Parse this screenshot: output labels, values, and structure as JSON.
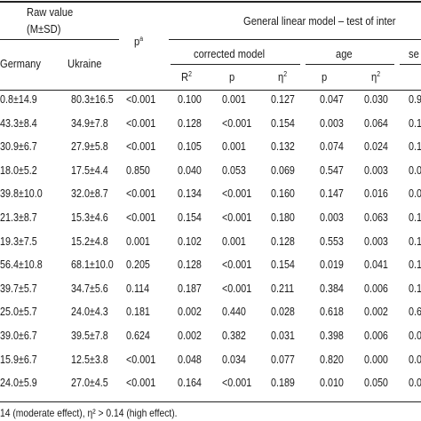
{
  "header": {
    "raw_value_line1": "Raw value",
    "raw_value_line2": "(M±SD)",
    "glm_title": "General linear model – test of inter",
    "p_label": "p",
    "p_sup": "a",
    "col_germany": "Germany",
    "col_ukraine": "Ukraine",
    "group_corrected": "corrected model",
    "group_age": "age",
    "group_sex_partial": "se",
    "r2_label": "R",
    "r2_sup": "2",
    "p_col_label": "p",
    "eta_label": "η",
    "eta_sup": "2"
  },
  "rows": [
    {
      "germany": "0.8±14.9",
      "ukraine": "80.3±16.5",
      "p": "<0.001",
      "r2": "0.100",
      "cm_p": "0.001",
      "cm_eta": "0.127",
      "age_p": "0.047",
      "age_eta": "0.030",
      "sex": "0.9"
    },
    {
      "germany": "43.3±8.4",
      "ukraine": "34.9±7.8",
      "p": "<0.001",
      "r2": "0.128",
      "cm_p": "<0.001",
      "cm_eta": "0.154",
      "age_p": "0.003",
      "age_eta": "0.064",
      "sex": "0.1"
    },
    {
      "germany": "30.9±6.7",
      "ukraine": "27.9±5.8",
      "p": "<0.001",
      "r2": "0.105",
      "cm_p": "0.001",
      "cm_eta": "0.132",
      "age_p": "0.074",
      "age_eta": "0.024",
      "sex": "0.1"
    },
    {
      "germany": "18.0±5.2",
      "ukraine": "17.5±4.4",
      "p": "0.850",
      "r2": "0.040",
      "cm_p": "0.053",
      "cm_eta": "0.069",
      "age_p": "0.547",
      "age_eta": "0.003",
      "sex": "0.0"
    },
    {
      "germany": "39.8±10.0",
      "ukraine": "32.0±8.7",
      "p": "<0.001",
      "r2": "0.134",
      "cm_p": "<0.001",
      "cm_eta": "0.160",
      "age_p": "0.147",
      "age_eta": "0.016",
      "sex": "0.0"
    },
    {
      "germany": "21.3±8.7",
      "ukraine": "15.3±4.6",
      "p": "<0.001",
      "r2": "0.154",
      "cm_p": "<0.001",
      "cm_eta": "0.180",
      "age_p": "0.003",
      "age_eta": "0.063",
      "sex": "0.1"
    },
    {
      "germany": "19.3±7.5",
      "ukraine": "15.2±4.8",
      "p": "0.001",
      "r2": "0.102",
      "cm_p": "0.001",
      "cm_eta": "0.128",
      "age_p": "0.553",
      "age_eta": "0.003",
      "sex": "0.1"
    },
    {
      "germany": "56.4±10.8",
      "ukraine": "68.1±10.0",
      "p": "0.205",
      "r2": "0.128",
      "cm_p": "<0.001",
      "cm_eta": "0.154",
      "age_p": "0.019",
      "age_eta": "0.041",
      "sex": "0.1"
    },
    {
      "germany": "39.7±5.7",
      "ukraine": "34.7±5.6",
      "p": "0.114",
      "r2": "0.187",
      "cm_p": "<0.001",
      "cm_eta": "0.211",
      "age_p": "0.384",
      "age_eta": "0.006",
      "sex": "0.1"
    },
    {
      "germany": "25.0±5.7",
      "ukraine": "24.0±4.3",
      "p": "0.181",
      "r2": "0.002",
      "cm_p": "0.440",
      "cm_eta": "0.028",
      "age_p": "0.618",
      "age_eta": "0.002",
      "sex": "0.6"
    },
    {
      "germany": "39.0±6.7",
      "ukraine": "39.5±7.8",
      "p": "0.624",
      "r2": "0.002",
      "cm_p": "0.382",
      "cm_eta": "0.031",
      "age_p": "0.398",
      "age_eta": "0.006",
      "sex": "0.0"
    },
    {
      "germany": "15.9±6.7",
      "ukraine": "12.5±3.8",
      "p": "<0.001",
      "r2": "0.048",
      "cm_p": "0.034",
      "cm_eta": "0.077",
      "age_p": "0.820",
      "age_eta": "0.000",
      "sex": "0.0"
    },
    {
      "germany": "24.0±5.9",
      "ukraine": "27.0±4.5",
      "p": "<0.001",
      "r2": "0.164",
      "cm_p": "<0.001",
      "cm_eta": "0.189",
      "age_p": "0.010",
      "age_eta": "0.050",
      "sex": "0.0"
    }
  ],
  "footnote": "14 (moderate effect), η² > 0.14 (high effect)."
}
